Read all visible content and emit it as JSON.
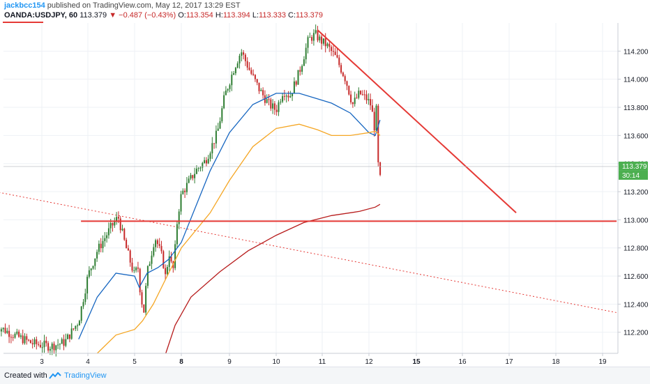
{
  "header": {
    "user": "jackbcc154",
    "published_text": "published on TradingView.com, May 12, 2017 13:29 EST",
    "symbol": "OANDA:USDJPY, 60",
    "last": "113.379",
    "change": "−0.487 (−0.43%)",
    "o_label": "O:",
    "o_value": "113.354",
    "h_label": "H:",
    "h_value": "113.394",
    "l_label": "L:",
    "l_value": "113.333",
    "c_label": "C:",
    "c_value": "113.379"
  },
  "footer": {
    "created_with": "Created with",
    "brand": "TradingView",
    "logo_icon": "tradingview-logo-icon"
  },
  "colors": {
    "up": "#2e7d32",
    "down": "#c62828",
    "ma_blue": "#1565c0",
    "ma_orange": "#f5a623",
    "ma_red": "#b71c1c",
    "drawing": "#e53935",
    "last_price": "#4caf50"
  },
  "chart_data": {
    "type": "candlestick",
    "symbol": "OANDA:USDJPY",
    "timeframe": "60",
    "x_ticks": [
      "3",
      "4",
      "5",
      "8",
      "9",
      "10",
      "11",
      "12",
      "15",
      "16",
      "17",
      "18",
      "19"
    ],
    "x_range": [
      2,
      19.3
    ],
    "y_ticks": [
      "114.200",
      "114.000",
      "113.800",
      "113.600",
      "113.400",
      "113.200",
      "113.000",
      "112.800",
      "112.600",
      "112.400",
      "112.200"
    ],
    "ylim": [
      112.05,
      114.4
    ],
    "last_price_label": "113.379",
    "countdown_label": "30:14",
    "grid": true,
    "moving_averages": [
      {
        "color": "blue",
        "points": [
          [
            3.8,
            112.15
          ],
          [
            4.2,
            112.45
          ],
          [
            4.6,
            112.62
          ],
          [
            5.0,
            112.6
          ],
          [
            5.3,
            112.52
          ],
          [
            5.8,
            112.62
          ],
          [
            6.5,
            112.66
          ],
          [
            7.2,
            112.72
          ],
          [
            8.0,
            112.84
          ],
          [
            8.6,
            113.35
          ],
          [
            9.0,
            113.62
          ],
          [
            9.5,
            113.82
          ],
          [
            10.0,
            113.9
          ],
          [
            10.5,
            113.9
          ],
          [
            10.9,
            113.86
          ],
          [
            11.2,
            113.83
          ],
          [
            11.6,
            113.76
          ],
          [
            12.0,
            113.62
          ],
          [
            12.4,
            113.6
          ],
          [
            12.7,
            113.71
          ]
        ]
      },
      {
        "color": "orange",
        "points": [
          [
            4.2,
            112.05
          ],
          [
            4.6,
            112.18
          ],
          [
            5.0,
            112.22
          ],
          [
            5.5,
            112.28
          ],
          [
            6.2,
            112.4
          ],
          [
            7.0,
            112.58
          ],
          [
            8.0,
            112.8
          ],
          [
            8.6,
            113.05
          ],
          [
            9.0,
            113.28
          ],
          [
            9.5,
            113.52
          ],
          [
            10.0,
            113.65
          ],
          [
            10.5,
            113.68
          ],
          [
            10.9,
            113.64
          ],
          [
            11.2,
            113.6
          ],
          [
            11.6,
            113.6
          ],
          [
            12.0,
            113.62
          ],
          [
            12.4,
            113.63
          ],
          [
            12.7,
            113.6
          ]
        ]
      },
      {
        "color": "red",
        "points": [
          [
            7.0,
            112.05
          ],
          [
            7.6,
            112.25
          ],
          [
            8.2,
            112.45
          ],
          [
            8.8,
            112.63
          ],
          [
            9.4,
            112.78
          ],
          [
            10.0,
            112.89
          ],
          [
            10.6,
            112.98
          ],
          [
            11.2,
            113.03
          ],
          [
            11.8,
            113.06
          ],
          [
            12.4,
            113.09
          ],
          [
            12.7,
            113.11
          ]
        ]
      }
    ],
    "drawings": [
      {
        "kind": "horizontal_segment",
        "style": "solid",
        "x": [
          3.85,
          19.3
        ],
        "y": 112.99
      },
      {
        "kind": "trendline",
        "style": "solid",
        "points": [
          [
            10.9,
            114.35
          ],
          [
            17.15,
            113.05
          ]
        ]
      },
      {
        "kind": "trendline",
        "style": "dotted",
        "points": [
          [
            2.0,
            113.2
          ],
          [
            19.3,
            112.34
          ]
        ]
      }
    ],
    "anchors": [
      [
        2.0,
        112.25
      ],
      [
        2.4,
        112.18
      ],
      [
        2.8,
        112.12
      ],
      [
        3.2,
        112.1
      ],
      [
        3.5,
        112.13
      ],
      [
        3.8,
        112.28
      ],
      [
        4.0,
        112.6
      ],
      [
        4.2,
        112.78
      ],
      [
        4.5,
        112.95
      ],
      [
        4.65,
        113.02
      ],
      [
        4.8,
        112.82
      ],
      [
        5.0,
        112.6
      ],
      [
        5.2,
        112.68
      ],
      [
        5.4,
        112.45
      ],
      [
        5.6,
        112.35
      ],
      [
        5.8,
        112.62
      ],
      [
        6.0,
        112.72
      ],
      [
        6.3,
        112.88
      ],
      [
        6.5,
        112.82
      ],
      [
        6.8,
        112.72
      ],
      [
        7.0,
        112.58
      ],
      [
        7.2,
        112.78
      ],
      [
        7.45,
        112.62
      ],
      [
        7.65,
        112.85
      ],
      [
        7.75,
        113.02
      ],
      [
        8.0,
        113.18
      ],
      [
        8.3,
        113.35
      ],
      [
        8.5,
        113.42
      ],
      [
        8.75,
        113.62
      ],
      [
        8.9,
        113.88
      ],
      [
        9.1,
        114.08
      ],
      [
        9.25,
        114.2
      ],
      [
        9.45,
        114.05
      ],
      [
        9.65,
        113.92
      ],
      [
        9.85,
        113.82
      ],
      [
        10.0,
        113.78
      ],
      [
        10.15,
        113.92
      ],
      [
        10.3,
        113.88
      ],
      [
        10.5,
        114.05
      ],
      [
        10.7,
        114.28
      ],
      [
        10.85,
        114.32
      ],
      [
        10.95,
        114.28
      ],
      [
        11.1,
        114.24
      ],
      [
        11.3,
        114.15
      ],
      [
        11.5,
        114.0
      ],
      [
        11.65,
        113.82
      ],
      [
        11.8,
        113.9
      ],
      [
        11.95,
        113.86
      ],
      [
        12.1,
        113.82
      ],
      [
        12.2,
        113.76
      ],
      [
        12.3,
        113.72
      ],
      [
        12.35,
        113.65
      ],
      [
        12.5,
        113.82
      ],
      [
        12.55,
        113.58
      ],
      [
        12.6,
        113.32
      ],
      [
        12.68,
        113.26
      ],
      [
        12.8,
        113.38
      ]
    ]
  }
}
